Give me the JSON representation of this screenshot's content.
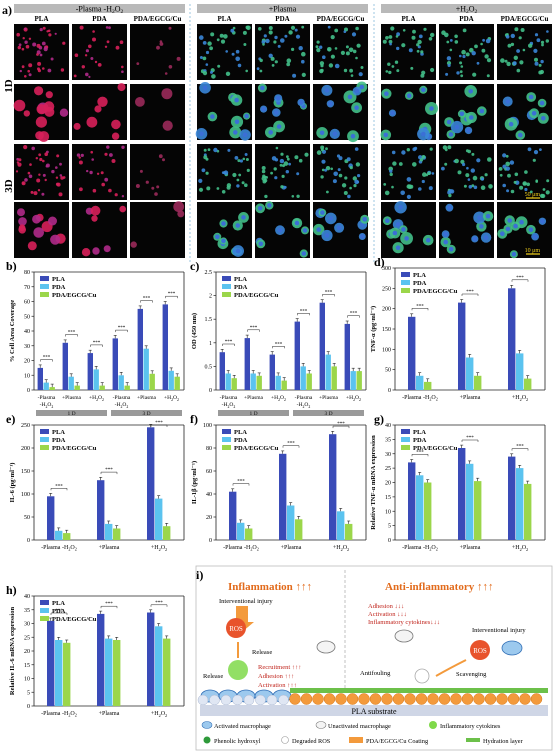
{
  "colors": {
    "PLA": "#3a4bb8",
    "PDA": "#5bc3ef",
    "PDA/EGCG/Cu": "#9bd64a",
    "microscopy_bg": "#050505",
    "axis": "#222222"
  },
  "panel_a": {
    "label": "a)",
    "groups": [
      {
        "title": "-Plasma -H2O2",
        "columns": [
          "PLA",
          "PDA",
          "PDA/EGCG/Cu"
        ],
        "stain": "red"
      },
      {
        "title": "+Plasma",
        "columns": [
          "PLA",
          "PDA",
          "PDA/EGCG/Cu"
        ],
        "stain": "green"
      },
      {
        "title": "+H2O2",
        "columns": [
          "PLA",
          "PDA",
          "PDA/EGCG/Cu"
        ],
        "stain": "green"
      }
    ],
    "row_labels": [
      "1D",
      "3D"
    ],
    "scalebars": [
      "50 μm",
      "10 μm"
    ]
  },
  "chart_data": [
    {
      "id": "b",
      "type": "bar",
      "label": "b)",
      "ylabel": "% Cell Area Coverage",
      "categories": [
        "-Plasma -H2O2",
        "+Plasma",
        "+H2O2",
        "-Plasma -H2O2",
        "+Plasma",
        "+H2O2"
      ],
      "group_labels": [
        "1 D",
        "3 D"
      ],
      "ylim": [
        0,
        80
      ],
      "yticks": [
        0,
        10,
        20,
        30,
        40,
        50,
        60,
        70,
        80
      ],
      "series": [
        {
          "name": "PLA",
          "values": [
            15,
            32,
            25,
            35,
            55,
            58
          ]
        },
        {
          "name": "PDA",
          "values": [
            5,
            9,
            14,
            10,
            28,
            13
          ]
        },
        {
          "name": "PDA/EGCG/Cu",
          "values": [
            2,
            3,
            3,
            3,
            11,
            9
          ]
        }
      ]
    },
    {
      "id": "c",
      "type": "bar",
      "label": "c)",
      "ylabel": "OD (450 nm)",
      "categories": [
        "-Plasma -H2O2",
        "+Plasma",
        "+H2O2",
        "-Plasma -H2O2",
        "+Plasma",
        "+H2O2"
      ],
      "group_labels": [
        "1 D",
        "3 D"
      ],
      "ylim": [
        0,
        2.5
      ],
      "yticks": [
        0,
        0.5,
        1.0,
        1.5,
        2.0,
        2.5
      ],
      "series": [
        {
          "name": "PLA",
          "values": [
            0.8,
            1.1,
            0.75,
            1.45,
            1.85,
            1.4
          ]
        },
        {
          "name": "PDA",
          "values": [
            0.35,
            0.35,
            0.3,
            0.5,
            0.75,
            0.4
          ]
        },
        {
          "name": "PDA/EGCG/Cu",
          "values": [
            0.25,
            0.3,
            0.2,
            0.35,
            0.5,
            0.4
          ]
        }
      ]
    },
    {
      "id": "d",
      "type": "bar",
      "label": "d)",
      "ylabel": "TNF-α (pg·ml⁻¹)",
      "categories": [
        "-Plasma -H2O2",
        "+Plasma",
        "+H2O2"
      ],
      "ylim": [
        0,
        300
      ],
      "yticks": [
        0,
        50,
        100,
        150,
        200,
        250,
        300
      ],
      "series": [
        {
          "name": "PLA",
          "values": [
            180,
            215,
            250
          ]
        },
        {
          "name": "PDA",
          "values": [
            35,
            80,
            90
          ]
        },
        {
          "name": "PDA/EGCG/Cu",
          "values": [
            20,
            35,
            28
          ]
        }
      ]
    },
    {
      "id": "e",
      "type": "bar",
      "label": "e)",
      "ylabel": "IL-6 (pg·ml⁻¹)",
      "categories": [
        "-Plasma -H2O2",
        "+Plasma",
        "+H2O2"
      ],
      "ylim": [
        0,
        250
      ],
      "yticks": [
        0,
        50,
        100,
        150,
        200,
        250
      ],
      "series": [
        {
          "name": "PLA",
          "values": [
            95,
            130,
            245
          ]
        },
        {
          "name": "PDA",
          "values": [
            20,
            35,
            90
          ]
        },
        {
          "name": "PDA/EGCG/Cu",
          "values": [
            15,
            25,
            30
          ]
        }
      ]
    },
    {
      "id": "f",
      "type": "bar",
      "label": "f)",
      "ylabel": "IL-1β (pg·ml⁻¹)",
      "categories": [
        "-Plasma -H2O2",
        "+Plasma",
        "+H2O2"
      ],
      "ylim": [
        0,
        100
      ],
      "yticks": [
        0,
        20,
        40,
        60,
        80,
        100
      ],
      "series": [
        {
          "name": "PLA",
          "values": [
            42,
            75,
            92
          ]
        },
        {
          "name": "PDA",
          "values": [
            15,
            30,
            25
          ]
        },
        {
          "name": "PDA/EGCG/Cu",
          "values": [
            10,
            18,
            14
          ]
        }
      ]
    },
    {
      "id": "g",
      "type": "bar",
      "label": "g)",
      "ylabel": "Relative TNF-α mRNA expression",
      "categories": [
        "-Plasma -H2O2",
        "+Plasma",
        "+H2O2"
      ],
      "ylim": [
        0,
        40
      ],
      "yticks": [
        0,
        5,
        10,
        15,
        20,
        25,
        30,
        35,
        40
      ],
      "series": [
        {
          "name": "PLA",
          "values": [
            27,
            32,
            29
          ]
        },
        {
          "name": "PDA",
          "values": [
            22.5,
            26.5,
            25
          ]
        },
        {
          "name": "PDA/EGCG/Cu",
          "values": [
            20,
            20.5,
            19.5
          ]
        }
      ]
    },
    {
      "id": "h",
      "type": "bar",
      "label": "h)",
      "ylabel": "Relative IL-6 mRNA expression",
      "categories": [
        "-Plasma -H2O2",
        "+Plasma",
        "+H2O2"
      ],
      "ylim": [
        0,
        40
      ],
      "yticks": [
        0,
        5,
        10,
        15,
        20,
        25,
        30,
        35,
        40
      ],
      "series": [
        {
          "name": "PLA",
          "values": [
            31,
            33.5,
            34
          ]
        },
        {
          "name": "PDA",
          "values": [
            24,
            24.5,
            29
          ]
        },
        {
          "name": "PDA/EGCG/Cu",
          "values": [
            23,
            24,
            24.5
          ]
        }
      ]
    }
  ],
  "panel_i": {
    "label": "i)",
    "left_title": "Inflammation ↑↑↑",
    "right_title": "Anti-inflammatory ↑↑↑",
    "left_texts": [
      "Interventional injury",
      "ROS",
      "Release",
      "Release",
      "Recruitment ↑↑↑",
      "Adhesion ↑↑↑",
      "Activation ↑↑↑"
    ],
    "right_texts": [
      "Adhesion ↓↓↓",
      "Activation ↓↓↓",
      "Inflammatory cytokines↓↓↓",
      "Interventional injury",
      "Antifouling",
      "Scavenging",
      "ROS"
    ],
    "substrate": "PLA substrate",
    "legend": [
      "Activated macrophage",
      "Unactivated macrophage",
      "Inflammatory cytokines",
      "Phenolic hydroxyl",
      "Degraded ROS",
      "PDA/EGCG/Cu Coating",
      "Hydration layer"
    ]
  }
}
